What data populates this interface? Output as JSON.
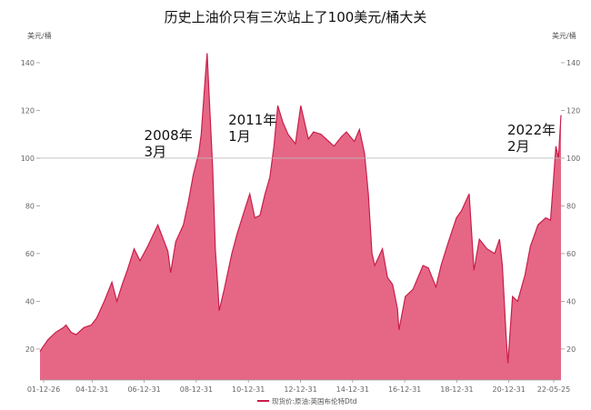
{
  "chart_data": {
    "type": "area",
    "title": "历史上油价只有三次站上了100美元/桶大关",
    "y_unit_left": "美元/桶",
    "y_unit_right": "美元/桶",
    "x_ticks": [
      "01-12-26",
      "04-12-31",
      "06-12-31",
      "08-12-31",
      "10-12-31",
      "12-12-31",
      "14-12-31",
      "16-12-31",
      "18-12-31",
      "20-12-31",
      "22-05-25"
    ],
    "y_ticks": [
      20,
      40,
      60,
      80,
      100,
      120,
      140
    ],
    "ylim": [
      7,
      148
    ],
    "reference_line": 100,
    "legend": "现货价:原油:英国布伦特Dtd",
    "color": "#e0456a",
    "annotations": [
      {
        "line1": "2008年",
        "line2": "3月",
        "x": 2008.2,
        "y": 100
      },
      {
        "line1": "2011年",
        "line2": "1月",
        "x": 2011.0,
        "y": 100
      },
      {
        "line1": "2022年",
        "line2": "2月",
        "x": 2022.15,
        "y": 100
      }
    ],
    "series": [
      {
        "x": [
          2001.98,
          2002.1,
          2002.3,
          2002.6,
          2002.9,
          2003.0,
          2003.2,
          2003.4,
          2003.7,
          2003.99,
          2004.2,
          2004.5,
          2004.8,
          2004.99,
          2005.2,
          2005.4,
          2005.67,
          2005.9,
          2006.2,
          2006.6,
          2006.99,
          2007.1,
          2007.3,
          2007.6,
          2007.8,
          2007.99,
          2008.2,
          2008.3,
          2008.45,
          2008.53,
          2008.6,
          2008.75,
          2008.85,
          2008.95,
          2009.0,
          2009.2,
          2009.5,
          2009.7,
          2009.99,
          2010.2,
          2010.4,
          2010.6,
          2010.8,
          2010.99,
          2011.15,
          2011.3,
          2011.5,
          2011.7,
          2011.99,
          2012.2,
          2012.5,
          2012.7,
          2012.99,
          2013.2,
          2013.5,
          2013.8,
          2013.99,
          2014.3,
          2014.5,
          2014.7,
          2014.85,
          2014.99,
          2015.1,
          2015.4,
          2015.6,
          2015.8,
          2015.99,
          2016.05,
          2016.3,
          2016.6,
          2016.99,
          2017.2,
          2017.5,
          2017.7,
          2017.99,
          2018.3,
          2018.5,
          2018.8,
          2018.99,
          2019.2,
          2019.5,
          2019.8,
          2019.99,
          2020.1,
          2020.25,
          2020.32,
          2020.5,
          2020.7,
          2020.99,
          2021.2,
          2021.5,
          2021.8,
          2021.99,
          2022.1,
          2022.2,
          2022.3,
          2022.4
        ],
        "y": [
          19,
          21,
          24,
          27,
          29,
          30,
          27,
          26,
          29,
          30,
          33,
          40,
          48,
          40,
          47,
          53,
          62,
          57,
          63,
          72,
          61,
          52,
          65,
          72,
          82,
          93,
          102,
          110,
          133,
          144,
          128,
          95,
          62,
          46,
          36,
          45,
          60,
          68,
          78,
          85,
          75,
          76,
          85,
          92,
          105,
          122,
          115,
          110,
          106,
          122,
          108,
          111,
          110,
          108,
          105,
          109,
          111,
          107,
          112,
          102,
          85,
          60,
          55,
          62,
          50,
          47,
          37,
          28,
          42,
          45,
          55,
          54,
          46,
          55,
          65,
          75,
          78,
          85,
          53,
          66,
          62,
          60,
          66,
          55,
          25,
          14,
          42,
          40,
          51,
          63,
          72,
          75,
          74,
          90,
          105,
          100,
          118
        ]
      }
    ]
  }
}
